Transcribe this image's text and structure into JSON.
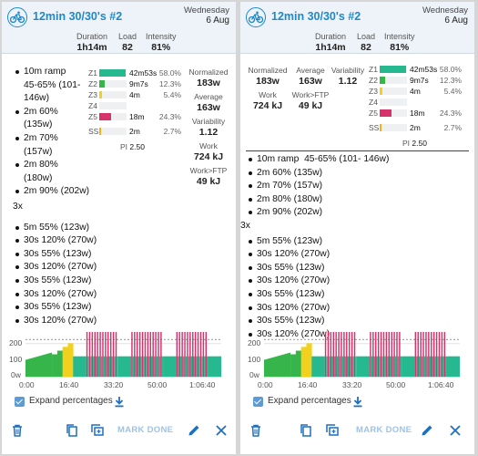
{
  "workout": {
    "title": "12min 30/30's #2",
    "day": "Wednesday",
    "date": "6 Aug",
    "stats": [
      {
        "label": "Duration",
        "value": "1h14m"
      },
      {
        "label": "Load",
        "value": "82"
      },
      {
        "label": "Intensity",
        "value": "81%"
      }
    ]
  },
  "description": {
    "left_lines": [
      "10m ramp",
      "45-65% (101-",
      "146w)",
      "2m 60%",
      "(135w)",
      "2m 70%",
      "(157w)",
      "2m 80%",
      "(180w)",
      "2m 90% (202w)"
    ],
    "right_lines": [
      "10m ramp  45-65% (101- 146w)",
      "2m 60% (135w)",
      "2m 70% (157w)",
      "2m 80% (180w)",
      "2m 90% (202w)"
    ],
    "repeat": "3x",
    "repeat_lines": [
      "5m 55% (123w)",
      "30s 120% (270w)",
      "30s 55% (123w)",
      "30s 120% (270w)",
      "30s 55% (123w)",
      "30s 120% (270w)",
      "30s 55% (123w)",
      "30s 120% (270w)"
    ]
  },
  "zones": [
    {
      "zone": "Z1",
      "time": "42m53s",
      "pct": "58.0%",
      "fraction": 0.98,
      "color": "#26b98f"
    },
    {
      "zone": "Z2",
      "time": "9m7s",
      "pct": "12.3%",
      "fraction": 0.21,
      "color": "#36b54a"
    },
    {
      "zone": "Z3",
      "time": "4m",
      "pct": "5.4%",
      "fraction": 0.1,
      "color": "#f2d01e"
    },
    {
      "zone": "Z4",
      "time": "",
      "pct": "",
      "fraction": 0,
      "color": "#f59a1e"
    },
    {
      "zone": "Z5",
      "time": "18m",
      "pct": "24.3%",
      "fraction": 0.42,
      "color": "#d6336c"
    },
    {
      "zone": "SS",
      "time": "2m",
      "pct": "2.7%",
      "fraction": 0.05,
      "color": "#f2b01e"
    }
  ],
  "pi": {
    "label": "PI",
    "value": "2.50"
  },
  "metrics": [
    {
      "label": "Normalized",
      "value": "183w"
    },
    {
      "label": "Average",
      "value": "163w"
    },
    {
      "label": "Variability",
      "value": "1.12"
    },
    {
      "label": "Work",
      "value": "724 kJ"
    },
    {
      "label": "Work>FTP",
      "value": "49 kJ"
    }
  ],
  "chart_data": {
    "type": "area",
    "x_ticks": [
      "0:00",
      "16:40",
      "33:20",
      "50:00",
      "1:06:40"
    ],
    "y_ticks": [
      "200",
      "100",
      "0w"
    ],
    "x_range_minutes": [
      0,
      74
    ],
    "y_range_watts": [
      0,
      270
    ],
    "ftp_watts": 225,
    "colors": {
      "z1": "#26b98f",
      "z2": "#36b54a",
      "z3": "#f2d01e",
      "z5": "#d6336c",
      "ftp_line": "#555555"
    },
    "segments": [
      {
        "start": 0,
        "end": 10,
        "watts_start": 101,
        "watts_end": 146,
        "zone": "z2"
      },
      {
        "start": 10,
        "end": 12,
        "watts": 135,
        "zone": "z2"
      },
      {
        "start": 12,
        "end": 14,
        "watts": 157,
        "zone": "z2"
      },
      {
        "start": 14,
        "end": 16,
        "watts": 180,
        "zone": "z3"
      },
      {
        "start": 16,
        "end": 18,
        "watts": 202,
        "zone": "z3"
      },
      {
        "repeat": 3,
        "rest_minutes": 5,
        "rest_watts": 123,
        "on_seconds": 30,
        "on_watts": 270,
        "off_watts": 123,
        "pairs": 12
      }
    ]
  },
  "controls": {
    "expand_label": "Expand percentages",
    "mark_done": "MARK DONE"
  }
}
